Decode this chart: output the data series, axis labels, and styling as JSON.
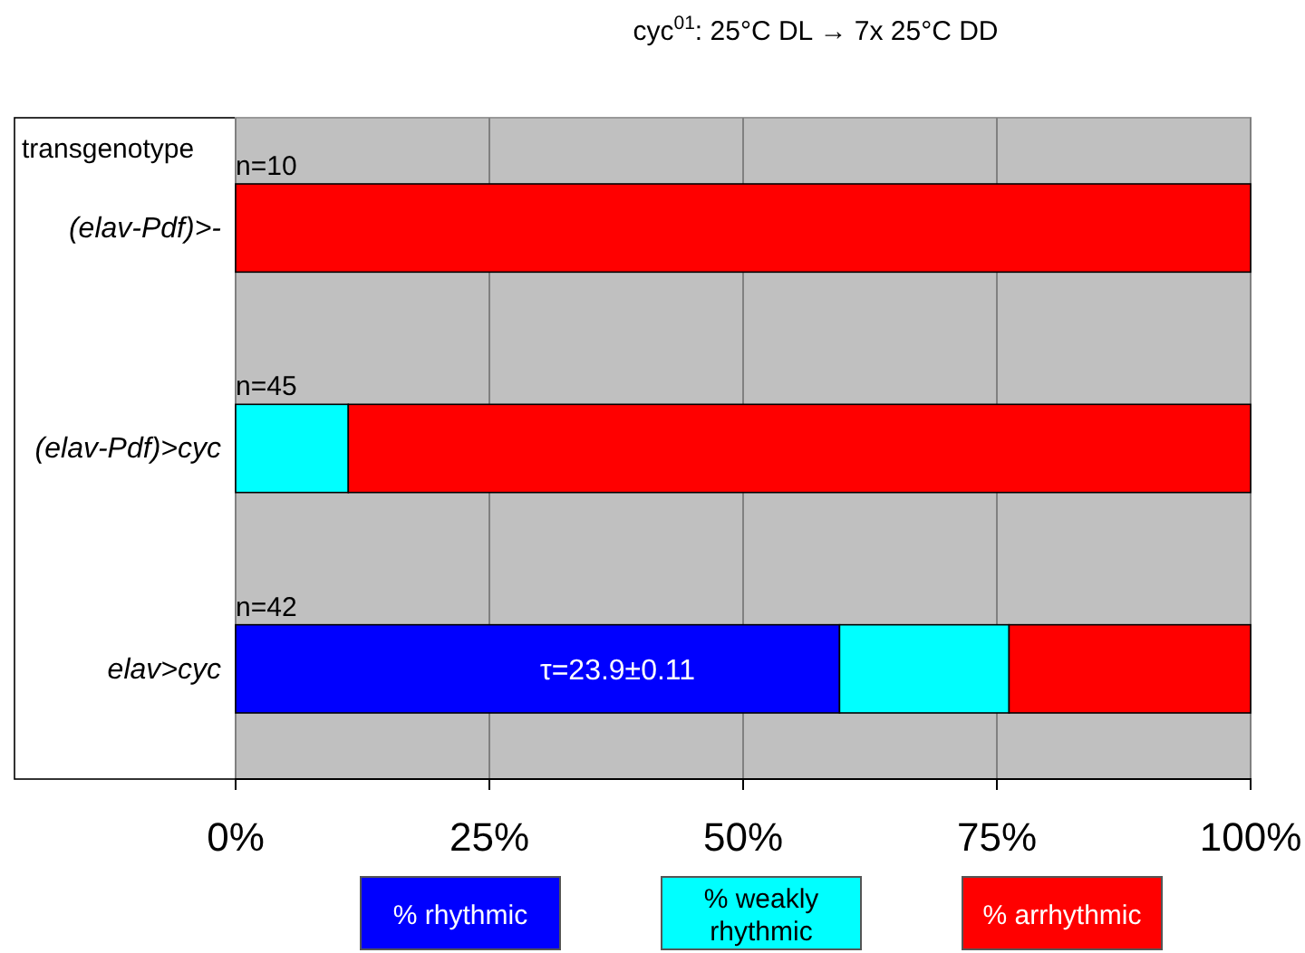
{
  "chart_data": {
    "type": "bar",
    "orientation": "horizontal",
    "stacked": true,
    "title": "cyc$^{01}$: 25°C DL → 7x 25°C DD",
    "ylabel": "transgenotype",
    "categories": [
      "(elav-Pdf)>-",
      "(elav-Pdf)>cyc",
      "elav>cyc"
    ],
    "series": [
      {
        "name": "% rhythmic",
        "color": "#0000ff",
        "values": [
          0,
          0,
          59.5
        ]
      },
      {
        "name": "% weakly rhythmic",
        "color": "#00ffff",
        "values": [
          0,
          11.1,
          16.7
        ]
      },
      {
        "name": "% arrhythmic",
        "color": "#ff0000",
        "values": [
          100,
          88.9,
          23.8
        ]
      }
    ],
    "xlim": [
      0,
      100
    ],
    "xticks": [
      {
        "value": 0,
        "label": "0%"
      },
      {
        "value": 25,
        "label": "25%"
      },
      {
        "value": 50,
        "label": "50%"
      },
      {
        "value": 75,
        "label": "75%"
      },
      {
        "value": 100,
        "label": "100%"
      }
    ],
    "grid": "x",
    "legend": "bottom",
    "annotations": [
      "n=10",
      "n=45",
      "n=42",
      "τ=23.9±0.11"
    ]
  }
}
